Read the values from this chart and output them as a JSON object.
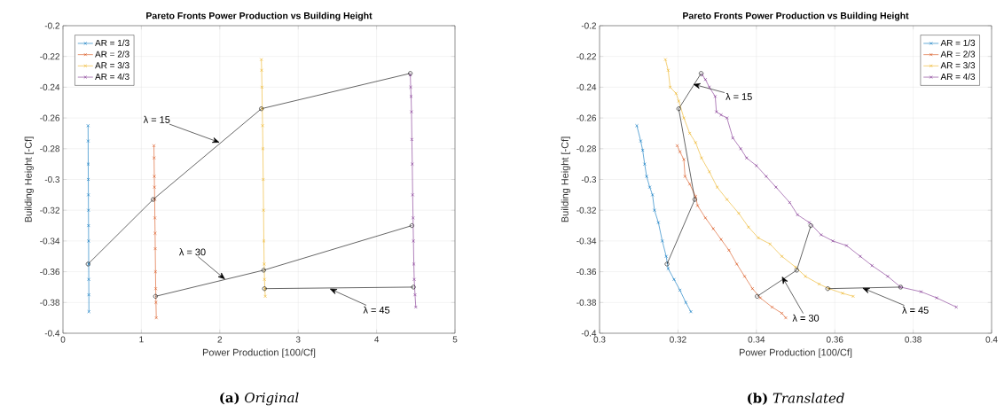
{
  "chart_data": [
    {
      "type": "line",
      "title": "Pareto Fronts Power Production vs Building Height",
      "xlabel": "Power Production [100/Cf]",
      "ylabel": "Building Height [-Cf]",
      "xlim": [
        0,
        5
      ],
      "xticks": [
        0,
        1,
        2,
        3,
        4,
        5
      ],
      "ylim": [
        -0.4,
        -0.2
      ],
      "yticks": [
        -0.4,
        -0.38,
        -0.36,
        -0.34,
        -0.32,
        -0.3,
        -0.28,
        -0.26,
        -0.24,
        -0.22,
        -0.2
      ],
      "grid": true,
      "legend": "top left",
      "line_style": "solid",
      "series": [
        {
          "name": "AR = 1/3",
          "color": "#0072bd",
          "marker": "cross",
          "x": [
            0.32,
            0.321,
            0.322,
            0.323,
            0.324,
            0.325,
            0.326,
            0.327,
            0.328,
            0.329,
            0.33,
            0.331
          ],
          "values": [
            -0.265,
            -0.275,
            -0.29,
            -0.3,
            -0.31,
            -0.32,
            -0.33,
            -0.34,
            -0.355,
            -0.365,
            -0.375,
            -0.386
          ]
        },
        {
          "name": "AR = 2/3",
          "color": "#d95319",
          "marker": "cross",
          "x": [
            1.16,
            1.162,
            1.165,
            1.167,
            1.17,
            1.172,
            1.175,
            1.177,
            1.18,
            1.183,
            1.186,
            1.19
          ],
          "values": [
            -0.278,
            -0.286,
            -0.298,
            -0.305,
            -0.313,
            -0.325,
            -0.335,
            -0.345,
            -0.36,
            -0.371,
            -0.38,
            -0.39
          ]
        },
        {
          "name": "AR = 3/3",
          "color": "#edb120",
          "marker": "cross",
          "x": [
            2.53,
            2.534,
            2.538,
            2.542,
            2.546,
            2.55,
            2.554,
            2.558,
            2.562,
            2.566,
            2.57,
            2.575,
            2.58
          ],
          "values": [
            -0.222,
            -0.229,
            -0.24,
            -0.254,
            -0.265,
            -0.28,
            -0.3,
            -0.32,
            -0.34,
            -0.355,
            -0.365,
            -0.371,
            -0.376
          ]
        },
        {
          "name": "AR = 4/3",
          "color": "#7e2f8e",
          "marker": "cross",
          "x": [
            4.43,
            4.435,
            4.44,
            4.445,
            4.45,
            4.455,
            4.46,
            4.465,
            4.47,
            4.475,
            4.48,
            4.49,
            4.5
          ],
          "values": [
            -0.232,
            -0.24,
            -0.246,
            -0.256,
            -0.274,
            -0.29,
            -0.31,
            -0.325,
            -0.34,
            -0.355,
            -0.365,
            -0.375,
            -0.383
          ]
        },
        {
          "color": "#000000",
          "marker": "circle",
          "x": [
            0.32,
            1.15,
            2.53,
            4.43
          ],
          "values": [
            -0.355,
            -0.313,
            -0.254,
            -0.231
          ]
        },
        {
          "color": "#000000",
          "marker": "circle",
          "x": [
            1.18,
            2.56,
            4.45
          ],
          "values": [
            -0.376,
            -0.359,
            -0.33
          ]
        },
        {
          "color": "#000000",
          "marker": "circle",
          "x": [
            2.57,
            4.47
          ],
          "values": [
            -0.371,
            -0.37
          ]
        }
      ],
      "annotations": [
        {
          "text": "λ = 15",
          "x": 2.0,
          "y": -0.276
        },
        {
          "text": "λ = 30",
          "x": 2.07,
          "y": -0.365
        },
        {
          "text": "λ = 45",
          "x": 3.4,
          "y": -0.371
        },
        "**(a)** *Original*"
      ]
    },
    {
      "type": "line",
      "title": "Pareto Fronts Power Production vs Building Height",
      "xlabel": "Power Production [100/Cf]",
      "ylabel": "Building Height [-Cf]",
      "xlim": [
        0.3,
        0.4
      ],
      "xticks": [
        0.3,
        0.32,
        0.34,
        0.36,
        0.38,
        0.4
      ],
      "ylim": [
        -0.4,
        -0.2
      ],
      "yticks": [
        -0.4,
        -0.38,
        -0.36,
        -0.34,
        -0.32,
        -0.3,
        -0.28,
        -0.26,
        -0.24,
        -0.22,
        -0.2
      ],
      "grid": true,
      "legend": "top right",
      "line_style": "solid",
      "series": [
        {
          "name": "AR = 1/3",
          "color": "#0072bd",
          "marker": "cross",
          "x": [
            0.3095,
            0.3105,
            0.311,
            0.3115,
            0.312,
            0.3128,
            0.3135,
            0.314,
            0.315,
            0.316,
            0.317,
            0.3175,
            0.319,
            0.3205,
            0.322,
            0.3233
          ],
          "values": [
            -0.265,
            -0.275,
            -0.281,
            -0.29,
            -0.298,
            -0.305,
            -0.31,
            -0.32,
            -0.328,
            -0.34,
            -0.35,
            -0.358,
            -0.365,
            -0.372,
            -0.38,
            -0.386
          ]
        },
        {
          "name": "AR = 2/3",
          "color": "#d95319",
          "marker": "cross",
          "x": [
            0.3198,
            0.3205,
            0.3215,
            0.3218,
            0.323,
            0.3245,
            0.325,
            0.327,
            0.329,
            0.331,
            0.333,
            0.335,
            0.337,
            0.339,
            0.341,
            0.344,
            0.3465,
            0.3475
          ],
          "values": [
            -0.278,
            -0.282,
            -0.287,
            -0.298,
            -0.303,
            -0.311,
            -0.317,
            -0.325,
            -0.332,
            -0.339,
            -0.346,
            -0.355,
            -0.363,
            -0.371,
            -0.377,
            -0.383,
            -0.387,
            -0.39
          ]
        },
        {
          "name": "AR = 3/3",
          "color": "#edb120",
          "marker": "cross",
          "x": [
            0.3168,
            0.3175,
            0.318,
            0.3195,
            0.3202,
            0.3215,
            0.323,
            0.3245,
            0.326,
            0.328,
            0.33,
            0.3325,
            0.3355,
            0.338,
            0.3405,
            0.3435,
            0.3465,
            0.35,
            0.3525,
            0.356,
            0.3585,
            0.362,
            0.3647
          ],
          "values": [
            -0.222,
            -0.229,
            -0.24,
            -0.244,
            -0.249,
            -0.26,
            -0.27,
            -0.276,
            -0.286,
            -0.295,
            -0.305,
            -0.313,
            -0.322,
            -0.331,
            -0.338,
            -0.342,
            -0.35,
            -0.357,
            -0.363,
            -0.368,
            -0.371,
            -0.374,
            -0.376
          ]
        },
        {
          "name": "AR = 4/3",
          "color": "#7e2f8e",
          "marker": "cross",
          "x": [
            0.3262,
            0.327,
            0.328,
            0.3295,
            0.3298,
            0.331,
            0.3325,
            0.334,
            0.336,
            0.3375,
            0.34,
            0.3425,
            0.345,
            0.3485,
            0.3505,
            0.3535,
            0.3565,
            0.3595,
            0.363,
            0.3665,
            0.3695,
            0.3735,
            0.3768,
            0.382,
            0.386,
            0.391
          ],
          "values": [
            -0.232,
            -0.235,
            -0.24,
            -0.246,
            -0.256,
            -0.258,
            -0.26,
            -0.273,
            -0.28,
            -0.286,
            -0.291,
            -0.298,
            -0.305,
            -0.315,
            -0.323,
            -0.328,
            -0.336,
            -0.34,
            -0.343,
            -0.35,
            -0.356,
            -0.363,
            -0.37,
            -0.373,
            -0.377,
            -0.383
          ]
        },
        {
          "color": "#000000",
          "marker": "circle",
          "x": [
            0.3172,
            0.3243,
            0.3202,
            0.3259
          ],
          "values": [
            -0.355,
            -0.313,
            -0.254,
            -0.231
          ]
        },
        {
          "color": "#000000",
          "marker": "circle",
          "x": [
            0.3402,
            0.3503,
            0.3539
          ],
          "values": [
            -0.376,
            -0.359,
            -0.33
          ]
        },
        {
          "color": "#000000",
          "marker": "circle",
          "x": [
            0.3582,
            0.3768
          ],
          "values": [
            -0.371,
            -0.37
          ]
        }
      ],
      "annotations": [
        {
          "text": "λ = 15",
          "x": 0.3238,
          "y": -0.238
        },
        {
          "text": "λ = 30",
          "x": 0.3465,
          "y": -0.363
        },
        {
          "text": "λ = 45",
          "x": 0.367,
          "y": -0.3705
        },
        "**(b)** *Translated*"
      ]
    }
  ]
}
